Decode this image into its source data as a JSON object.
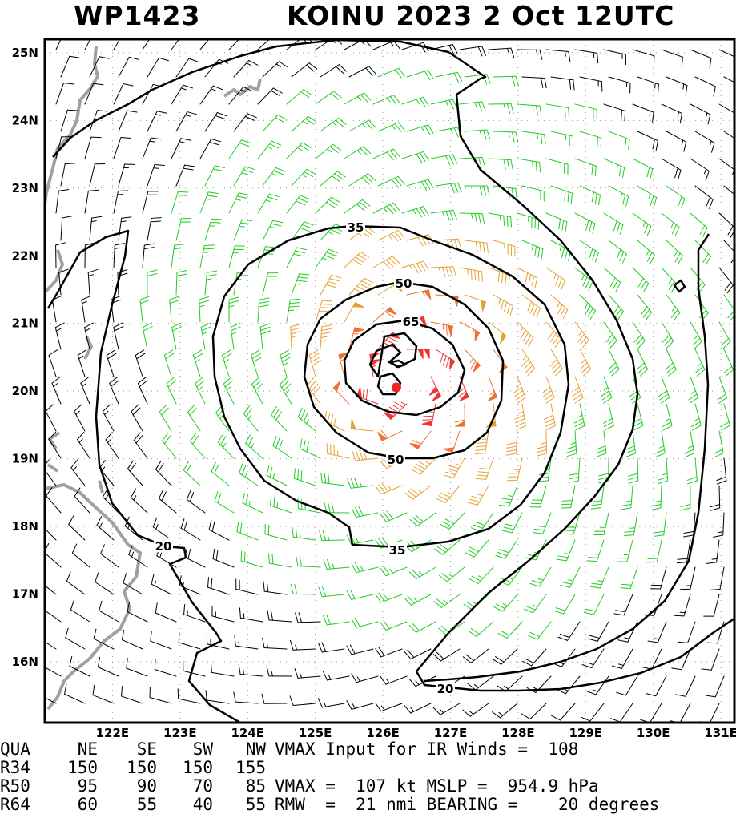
{
  "title": {
    "storm_id": "WP1423",
    "name_time": "KOINU 2023  2 Oct 12UTC"
  },
  "map": {
    "lon_range": [
      121.0,
      131.2
    ],
    "lat_range": [
      15.1,
      25.2
    ],
    "lat_labels": [
      "25N",
      "24N",
      "23N",
      "22N",
      "21N",
      "20N",
      "19N",
      "18N",
      "17N",
      "16N"
    ],
    "lon_labels": [
      "122E",
      "123E",
      "124E",
      "125E",
      "126E",
      "127E",
      "128E",
      "129E",
      "130E",
      "131E"
    ],
    "contour_labels": [
      "35",
      "50",
      "65",
      "50",
      "35",
      "20",
      "20"
    ],
    "center": {
      "lon": 126.2,
      "lat": 20.15
    },
    "barb_colors": {
      "lt20": "#000000",
      "20_35": "#22cc22",
      "35_50": "#e8a030",
      "50_65": "#f07030",
      "ge65": "#ee3333"
    },
    "coast_color": "#a0a0a0"
  },
  "table": {
    "header": [
      "QUA",
      "NE",
      "SE",
      "SW",
      "NW"
    ],
    "rows": [
      {
        "label": "R34",
        "values": [
          "150",
          "150",
          "150",
          "155"
        ]
      },
      {
        "label": "R50",
        "values": [
          "95",
          "90",
          "70",
          "85"
        ]
      },
      {
        "label": "R64",
        "values": [
          "60",
          "55",
          "40",
          "55"
        ]
      }
    ],
    "info": [
      "VMAX Input for IR Winds =  108",
      "",
      "VMAX =  107 kt MSLP =  954.9 hPa",
      "RMW  =  21 nmi BEARING =    20 degrees"
    ]
  }
}
